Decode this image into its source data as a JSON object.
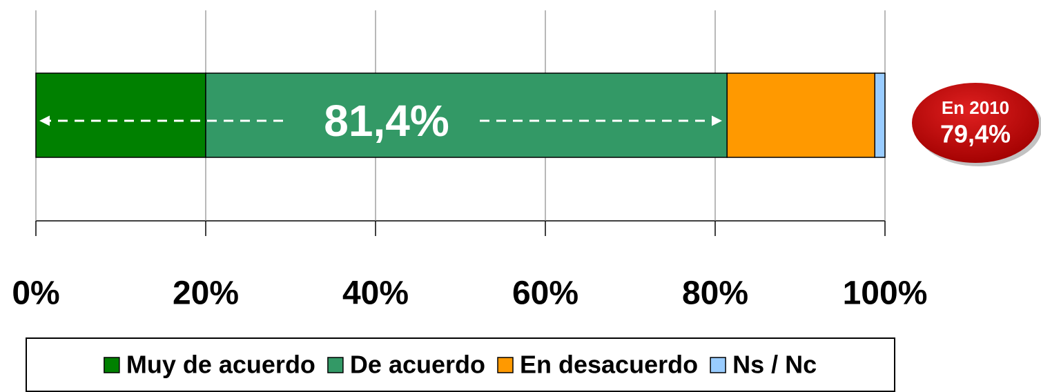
{
  "chart_data": {
    "type": "bar",
    "orientation": "horizontal",
    "stacked": true,
    "categories": [
      null
    ],
    "series": [
      {
        "name": "Muy de acuerdo",
        "color": "#008000",
        "values": [
          20.0
        ]
      },
      {
        "name": "De acuerdo",
        "color": "#339966",
        "values": [
          61.4
        ]
      },
      {
        "name": "En desacuerdo",
        "color": "#ff9900",
        "values": [
          17.4
        ]
      },
      {
        "name": "Ns / Nc",
        "color": "#99ccff",
        "values": [
          1.2
        ]
      }
    ],
    "xlim": [
      0,
      100
    ],
    "xticks": [
      {
        "value": 0,
        "label": "0%"
      },
      {
        "value": 20,
        "label": "20%"
      },
      {
        "value": 40,
        "label": "40%"
      },
      {
        "value": 60,
        "label": "60%"
      },
      {
        "value": 80,
        "label": "80%"
      },
      {
        "value": 100,
        "label": "100%"
      }
    ],
    "grid": true,
    "legend": "bottom",
    "annotation": "81,4%",
    "callout": [
      "En 2010",
      "79,4%"
    ]
  }
}
